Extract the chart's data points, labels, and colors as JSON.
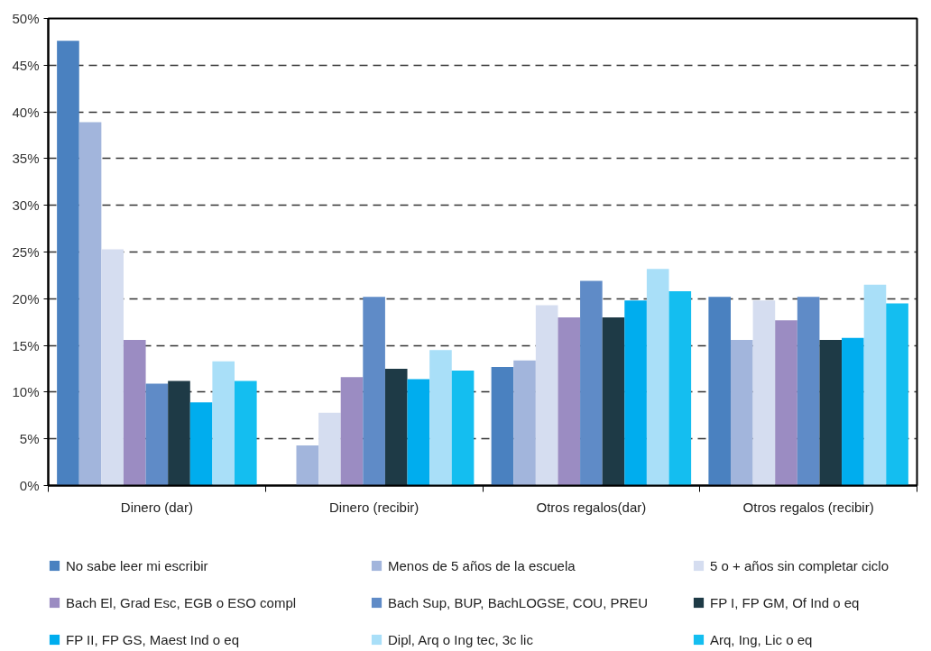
{
  "chart_data": {
    "type": "bar",
    "categories": [
      "Dinero (dar)",
      "Dinero (recibir)",
      "Otros regalos(dar)",
      "Otros regalos (recibir)"
    ],
    "series": [
      {
        "name": "No sabe leer mi escribir",
        "color": "#4a81c0",
        "values": [
          47.6,
          0,
          12.7,
          20.2
        ]
      },
      {
        "name": "Menos de 5 años de la escuela",
        "color": "#a2b5dc",
        "values": [
          38.9,
          4.3,
          13.4,
          15.6
        ]
      },
      {
        "name": "5 o + años sin completar ciclo",
        "color": "#d5ddf0",
        "values": [
          25.3,
          7.8,
          19.3,
          19.8
        ]
      },
      {
        "name": "Bach El, Grad Esc, EGB o ESO compl",
        "color": "#9b8cc2",
        "values": [
          15.6,
          11.6,
          18.0,
          17.7
        ]
      },
      {
        "name": "Bach Sup, BUP, BachLOGSE, COU, PREU",
        "color": "#5f8bc7",
        "values": [
          10.9,
          20.2,
          21.9,
          20.2
        ]
      },
      {
        "name": "FP I, FP GM, Of Ind o eq",
        "color": "#1e3a46",
        "values": [
          11.2,
          12.5,
          18.0,
          15.6
        ]
      },
      {
        "name": "FP II, FP GS, Maest Ind o eq",
        "color": "#00adee",
        "values": [
          8.9,
          11.4,
          19.8,
          15.8
        ]
      },
      {
        "name": "Dipl, Arq o Ing tec, 3c lic",
        "color": "#a9dff8",
        "values": [
          13.3,
          14.5,
          23.2,
          21.5
        ]
      },
      {
        "name": "Arq, Ing, Lic o eq",
        "color": "#14bef0",
        "values": [
          11.2,
          12.3,
          20.8,
          19.5
        ]
      }
    ],
    "ylim": [
      0,
      50
    ],
    "yticks": [
      {
        "value": 0,
        "label": "0%"
      },
      {
        "value": 5,
        "label": "5%"
      },
      {
        "value": 10,
        "label": "10%"
      },
      {
        "value": 15,
        "label": "15%"
      },
      {
        "value": 20,
        "label": "20%"
      },
      {
        "value": 25,
        "label": "25%"
      },
      {
        "value": 30,
        "label": "30%"
      },
      {
        "value": 35,
        "label": "35%"
      },
      {
        "value": 40,
        "label": "40%"
      },
      {
        "value": 45,
        "label": "45%"
      },
      {
        "value": 50,
        "label": "50%"
      }
    ],
    "grid": "y",
    "legend": "bottom"
  }
}
